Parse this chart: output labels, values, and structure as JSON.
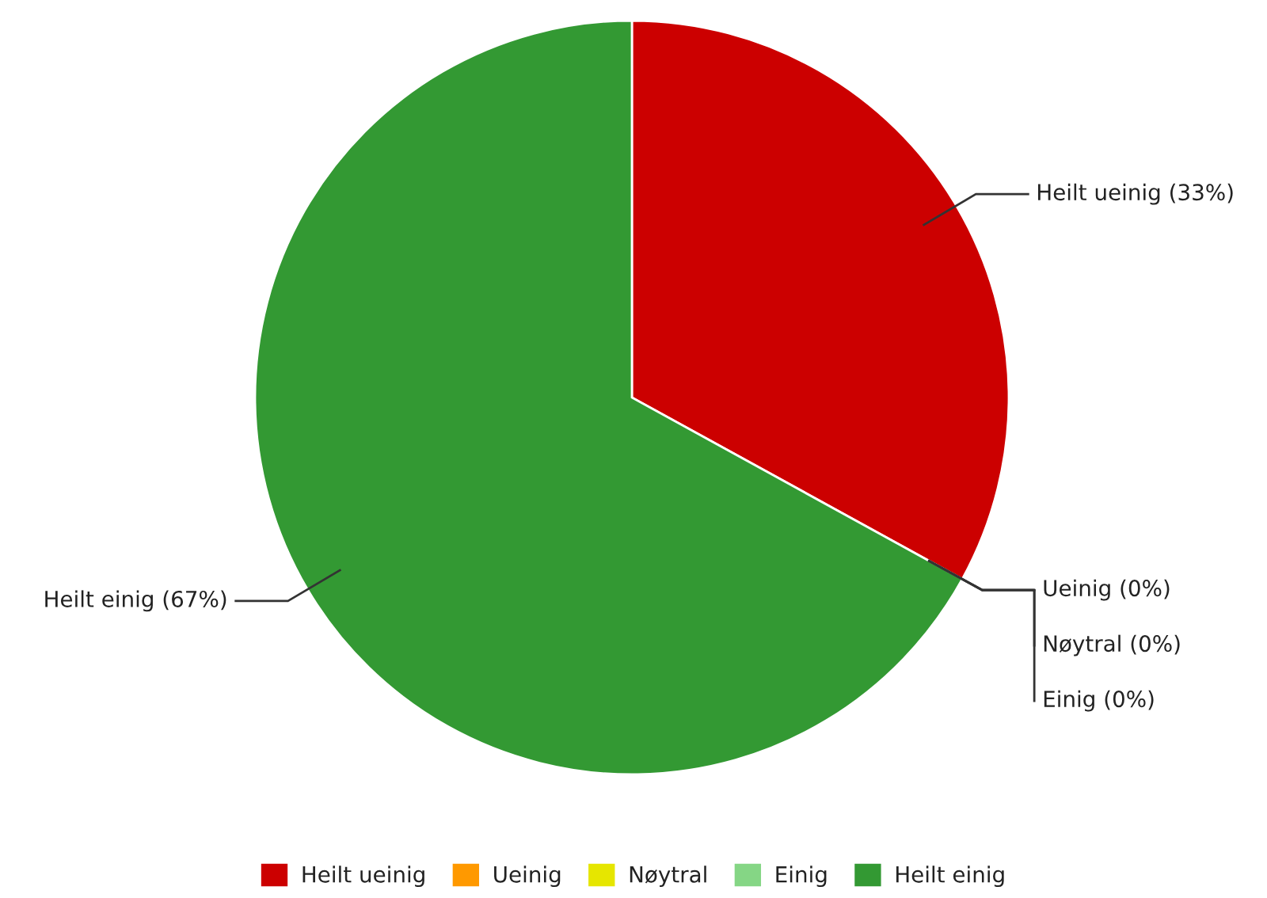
{
  "chart_data": {
    "type": "pie",
    "categories": [
      "Heilt ueinig",
      "Ueinig",
      "Nøytral",
      "Einig",
      "Heilt einig"
    ],
    "values": [
      33,
      0,
      0,
      0,
      67
    ],
    "colors": [
      "#cc0000",
      "#ff9900",
      "#e6e600",
      "#85d685",
      "#339933"
    ],
    "value_labels": [
      "Heilt ueinig (33%)",
      "Ueinig (0%)",
      "Nøytral (0%)",
      "Einig (0%)",
      "Heilt einig (67%)"
    ],
    "legend": "bottom"
  }
}
